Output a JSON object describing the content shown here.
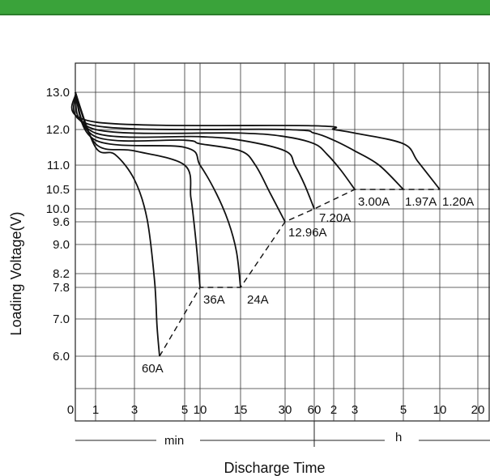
{
  "chart_data": {
    "type": "line",
    "title": "",
    "xlabel": "Discharge Time",
    "ylabel": "Loading  Voltage(V)",
    "x_units": [
      "min",
      "h"
    ],
    "x_ticks": [
      {
        "label": "0",
        "min": 0
      },
      {
        "label": "1",
        "min": 1
      },
      {
        "label": "3",
        "min": 3
      },
      {
        "label": "5",
        "min": 5
      },
      {
        "label": "10",
        "min": 10
      },
      {
        "label": "15",
        "min": 15
      },
      {
        "label": "30",
        "min": 30
      },
      {
        "label": "60",
        "min": 60
      },
      {
        "label": "2",
        "min": 120
      },
      {
        "label": "3",
        "min": 180
      },
      {
        "label": "5",
        "min": 300
      },
      {
        "label": "10",
        "min": 600
      },
      {
        "label": "20",
        "min": 1200
      }
    ],
    "y_ticks": [
      "13.0",
      "12.0",
      "11.0",
      "10.5",
      "10.0",
      "9.6",
      "9.0",
      "8.2",
      "7.8",
      "7.0",
      "6.0"
    ],
    "ylim": [
      4.8,
      14.4
    ],
    "grid": true,
    "series": [
      {
        "name": "60A",
        "points": [
          [
            0,
            13.0
          ],
          [
            1,
            11.5
          ],
          [
            2,
            11.3
          ],
          [
            3,
            10.7
          ],
          [
            3.5,
            9.7
          ],
          [
            3.8,
            8.0
          ],
          [
            3.9,
            6.8
          ],
          [
            4,
            6.0
          ]
        ]
      },
      {
        "name": "36A",
        "points": [
          [
            0,
            13.0
          ],
          [
            1,
            11.6
          ],
          [
            3,
            11.4
          ],
          [
            5,
            11.0
          ],
          [
            7,
            10.3
          ],
          [
            8,
            9.6
          ],
          [
            9,
            8.8
          ],
          [
            10,
            7.8
          ]
        ]
      },
      {
        "name": "24A",
        "points": [
          [
            0,
            13.0
          ],
          [
            1,
            11.7
          ],
          [
            5,
            11.5
          ],
          [
            10,
            11.0
          ],
          [
            12,
            10.4
          ],
          [
            13.5,
            9.6
          ],
          [
            14.5,
            8.8
          ],
          [
            15,
            7.8
          ]
        ]
      },
      {
        "name": "12.96A",
        "points": [
          [
            0,
            13.0
          ],
          [
            1,
            11.8
          ],
          [
            5,
            11.7
          ],
          [
            10,
            11.6
          ],
          [
            15,
            11.4
          ],
          [
            20,
            11.0
          ],
          [
            25,
            10.4
          ],
          [
            30,
            9.6
          ]
        ]
      },
      {
        "name": "7.20A",
        "points": [
          [
            0,
            13.0
          ],
          [
            1,
            11.9
          ],
          [
            10,
            11.8
          ],
          [
            15,
            11.7
          ],
          [
            30,
            11.4
          ],
          [
            40,
            11.0
          ],
          [
            50,
            10.6
          ],
          [
            60,
            10.0
          ]
        ]
      },
      {
        "name": "3.00A",
        "points": [
          [
            0,
            13.0
          ],
          [
            1,
            12.0
          ],
          [
            15,
            11.9
          ],
          [
            30,
            11.8
          ],
          [
            60,
            11.6
          ],
          [
            100,
            11.3
          ],
          [
            140,
            10.9
          ],
          [
            180,
            10.5
          ]
        ]
      },
      {
        "name": "1.97A",
        "points": [
          [
            0,
            13.0
          ],
          [
            1,
            12.1
          ],
          [
            30,
            12.0
          ],
          [
            60,
            11.9
          ],
          [
            120,
            11.7
          ],
          [
            180,
            11.4
          ],
          [
            240,
            11.0
          ],
          [
            300,
            10.5
          ]
        ]
      },
      {
        "name": "1.20A",
        "points": [
          [
            0,
            13.0
          ],
          [
            1,
            12.2
          ],
          [
            60,
            12.1
          ],
          [
            120,
            12.0
          ],
          [
            180,
            11.9
          ],
          [
            300,
            11.6
          ],
          [
            420,
            11.1
          ],
          [
            600,
            10.5
          ]
        ]
      }
    ],
    "cutoff_line": [
      [
        4,
        6.0
      ],
      [
        10,
        7.8
      ],
      [
        15,
        7.8
      ],
      [
        30,
        9.6
      ],
      [
        60,
        10.0
      ],
      [
        180,
        10.5
      ],
      [
        300,
        10.5
      ],
      [
        600,
        10.5
      ]
    ],
    "current_labels": [
      "60A",
      "36A",
      "24A",
      "12.96A",
      "7.20A",
      "3.00A",
      "1.97A",
      "1.20A"
    ]
  }
}
